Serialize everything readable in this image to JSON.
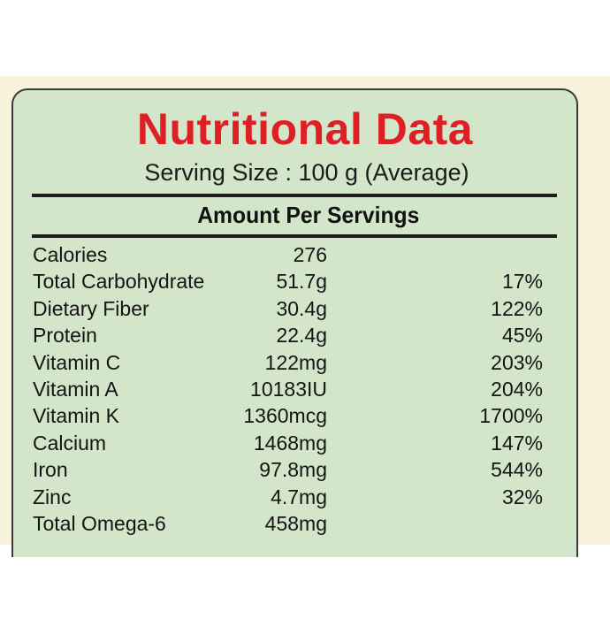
{
  "label": {
    "title": "Nutritional Data",
    "serving": "Serving Size : 100 g (Average)",
    "section": "Amount Per Servings"
  },
  "rows": [
    {
      "name": "Calories",
      "amount": "276",
      "dv": ""
    },
    {
      "name": "Total Carbohydrate",
      "amount": "51.7g",
      "dv": "17%"
    },
    {
      "name": "Dietary Fiber",
      "amount": "30.4g",
      "dv": "122%"
    },
    {
      "name": "Protein",
      "amount": "22.4g",
      "dv": "45%"
    },
    {
      "name": "Vitamin C",
      "amount": "122mg",
      "dv": "203%"
    },
    {
      "name": "Vitamin A",
      "amount": "10183IU",
      "dv": "204%"
    },
    {
      "name": "Vitamin K",
      "amount": "1360mcg",
      "dv": "1700%"
    },
    {
      "name": "Calcium",
      "amount": "1468mg",
      "dv": "147%"
    },
    {
      "name": "Iron",
      "amount": "97.8mg",
      "dv": "544%"
    },
    {
      "name": "Zinc",
      "amount": "4.7mg",
      "dv": "32%"
    },
    {
      "name": "Total Omega-6",
      "amount": "458mg",
      "dv": ""
    }
  ],
  "colors": {
    "title": "#df1f26",
    "panel": "#d4e6c9",
    "background_strip": "#f6f2dc",
    "text": "#141414"
  }
}
